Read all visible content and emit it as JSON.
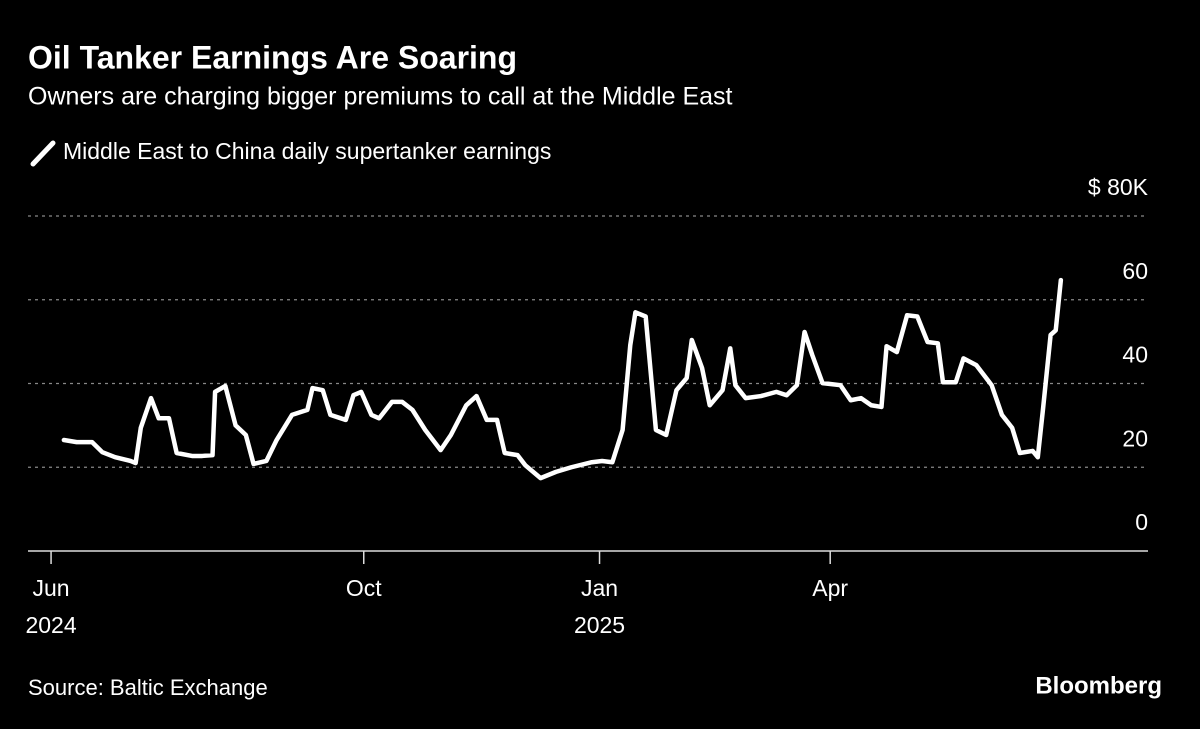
{
  "chart_data": {
    "type": "line",
    "title": "Oil Tanker Earnings Are Soaring",
    "subtitle": "Owners are charging bigger premiums to call at the Middle East",
    "source": "Source: Baltic Exchange",
    "brand": "Bloomberg",
    "x": [
      "2024-06-06",
      "2024-06-11",
      "2024-06-17",
      "2024-06-21",
      "2024-06-26",
      "2024-07-02",
      "2024-07-04",
      "2024-07-06",
      "2024-07-10",
      "2024-07-13",
      "2024-07-17",
      "2024-07-20",
      "2024-07-26",
      "2024-07-30",
      "2024-08-03",
      "2024-08-04",
      "2024-08-08",
      "2024-08-12",
      "2024-08-16",
      "2024-08-19",
      "2024-08-24",
      "2024-08-28",
      "2024-09-03",
      "2024-09-09",
      "2024-09-11",
      "2024-09-15",
      "2024-09-18",
      "2024-09-24",
      "2024-09-27",
      "2024-09-30",
      "2024-10-04",
      "2024-10-07",
      "2024-10-12",
      "2024-10-16",
      "2024-10-20",
      "2024-10-25",
      "2024-10-31",
      "2024-11-04",
      "2024-11-10",
      "2024-11-14",
      "2024-11-18",
      "2024-11-22",
      "2024-11-25",
      "2024-11-30",
      "2024-12-03",
      "2024-12-09",
      "2024-12-15",
      "2024-12-21",
      "2024-12-29",
      "2025-01-02",
      "2025-01-06",
      "2025-01-10",
      "2025-01-13",
      "2025-01-15",
      "2025-01-19",
      "2025-01-23",
      "2025-01-27",
      "2025-01-31",
      "2025-02-04",
      "2025-02-06",
      "2025-02-10",
      "2025-02-13",
      "2025-02-18",
      "2025-02-21",
      "2025-02-23",
      "2025-02-27",
      "2025-03-05",
      "2025-03-11",
      "2025-03-15",
      "2025-03-19",
      "2025-03-22",
      "2025-03-25",
      "2025-03-29",
      "2025-04-05",
      "2025-04-09",
      "2025-04-13",
      "2025-04-17",
      "2025-04-21",
      "2025-04-23",
      "2025-04-27",
      "2025-05-01",
      "2025-05-05",
      "2025-05-09",
      "2025-05-13",
      "2025-05-15",
      "2025-05-20",
      "2025-05-23",
      "2025-05-28",
      "2025-06-03",
      "2025-06-07",
      "2025-06-11",
      "2025-06-14",
      "2025-06-19",
      "2025-06-21",
      "2025-06-23",
      "2025-06-26",
      "2025-06-28",
      "2025-06-30"
    ],
    "series": [
      {
        "name": "Middle East to China daily supertanker earnings",
        "color": "#ffffff",
        "values": [
          26.5,
          26,
          26,
          23.6,
          22.4,
          21.5,
          21,
          29.4,
          36.5,
          31.7,
          31.7,
          23.4,
          22.7,
          22.7,
          22.9,
          38,
          39.4,
          30,
          27.7,
          20.8,
          21.5,
          26.5,
          32.5,
          33.7,
          38.9,
          38.4,
          32.5,
          31.3,
          37.2,
          38,
          32.5,
          31.7,
          35.6,
          35.6,
          33.7,
          28.9,
          24.1,
          27.7,
          34.8,
          37,
          31.3,
          31.3,
          23.4,
          22.9,
          20.5,
          17.4,
          18.9,
          20,
          21.2,
          21.5,
          21.2,
          28.9,
          49.2,
          57,
          56,
          28.9,
          27.7,
          38.4,
          41.3,
          50.4,
          43.7,
          34.8,
          38.4,
          48.4,
          39.6,
          36.5,
          37,
          38,
          37.2,
          39.6,
          52.3,
          46.8,
          40.1,
          39.6,
          36,
          36.5,
          34.8,
          34.4,
          48.9,
          47.5,
          56.3,
          56,
          49.9,
          49.6,
          40.3,
          40.3,
          46,
          44.4,
          39.6,
          32.5,
          29.4,
          23.4,
          23.9,
          22.4,
          33.7,
          51.6,
          52.7,
          64.7
        ]
      }
    ],
    "xlim": [
      "2024-05-23",
      "2025-08-03"
    ],
    "xticks": [
      {
        "value": "2024-06-01",
        "label": [
          "Jun",
          "2024"
        ]
      },
      {
        "value": "2024-10-01",
        "label": [
          "Oct"
        ]
      },
      {
        "value": "2025-01-01",
        "label": [
          "Jan",
          "2025"
        ]
      },
      {
        "value": "2025-04-01",
        "label": [
          "Apr"
        ]
      }
    ],
    "ylim": [
      0,
      80
    ],
    "yticks": [
      0,
      20,
      40,
      60,
      {
        "value": 80,
        "label": "$ 80K"
      }
    ],
    "grid": true
  }
}
